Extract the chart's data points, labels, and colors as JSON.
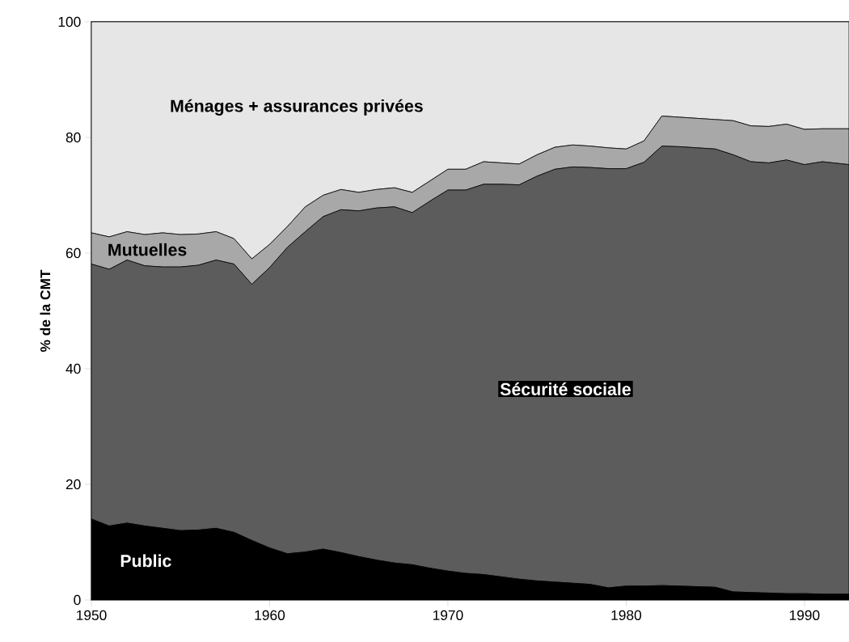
{
  "chart_data": {
    "type": "area",
    "stacked": true,
    "ylabel": "% de la CMT",
    "x": [
      1950,
      1951,
      1952,
      1953,
      1954,
      1955,
      1956,
      1957,
      1958,
      1959,
      1960,
      1961,
      1962,
      1963,
      1964,
      1965,
      1966,
      1967,
      1968,
      1969,
      1970,
      1971,
      1972,
      1973,
      1974,
      1975,
      1976,
      1977,
      1978,
      1979,
      1980,
      1981,
      1982,
      1983,
      1984,
      1985,
      1986,
      1987,
      1988,
      1989,
      1990,
      1991,
      1992.5
    ],
    "series": [
      {
        "name": "Public",
        "color": "#000000",
        "values": [
          14.0,
          12.8,
          13.3,
          12.8,
          12.4,
          12.0,
          12.1,
          12.4,
          11.7,
          10.3,
          9.0,
          8.0,
          8.3,
          8.8,
          8.2,
          7.5,
          6.9,
          6.4,
          6.1,
          5.5,
          5.0,
          4.6,
          4.4,
          4.0,
          3.6,
          3.3,
          3.1,
          2.9,
          2.7,
          2.1,
          2.4,
          2.4,
          2.5,
          2.4,
          2.3,
          2.2,
          1.4,
          1.3,
          1.2,
          1.1,
          1.1,
          1.0,
          1.0
        ]
      },
      {
        "name": "Sécurité sociale",
        "color": "#5c5c5c",
        "values": [
          44.1,
          44.4,
          45.5,
          45.0,
          45.2,
          45.6,
          45.8,
          46.4,
          46.4,
          44.3,
          48.5,
          53.0,
          55.4,
          57.5,
          59.3,
          59.8,
          60.9,
          61.6,
          60.9,
          63.5,
          65.9,
          66.3,
          67.5,
          67.9,
          68.2,
          70.0,
          71.4,
          72.0,
          72.1,
          72.5,
          72.2,
          73.3,
          76.0,
          76.0,
          75.9,
          75.8,
          75.6,
          74.5,
          74.4,
          75.0,
          74.2,
          74.8,
          74.3
        ]
      },
      {
        "name": "Mutuelles",
        "color": "#a8a8a8",
        "values": [
          5.4,
          5.6,
          4.9,
          5.4,
          5.9,
          5.6,
          5.4,
          4.9,
          4.4,
          4.4,
          4.0,
          3.6,
          4.3,
          3.7,
          3.5,
          3.2,
          3.2,
          3.3,
          3.5,
          3.5,
          3.6,
          3.6,
          3.9,
          3.7,
          3.6,
          3.7,
          3.8,
          3.8,
          3.7,
          3.6,
          3.4,
          3.7,
          5.2,
          5.1,
          5.1,
          5.1,
          5.9,
          6.2,
          6.3,
          6.2,
          6.1,
          5.7,
          6.2
        ]
      },
      {
        "name": "Ménages + assurances privées",
        "color": "#e6e6e6",
        "values": [
          36.5,
          37.2,
          36.3,
          36.8,
          36.5,
          36.8,
          36.7,
          36.3,
          37.5,
          41.0,
          38.5,
          35.4,
          32.0,
          30.0,
          29.0,
          29.5,
          29.0,
          28.7,
          29.5,
          27.5,
          25.5,
          25.5,
          24.2,
          24.4,
          24.6,
          23.0,
          21.7,
          21.3,
          21.5,
          21.8,
          22.0,
          20.6,
          16.3,
          16.5,
          16.7,
          16.9,
          17.1,
          18.0,
          18.1,
          17.7,
          18.6,
          18.5,
          18.5
        ]
      }
    ],
    "xlim": [
      1950,
      1992.5
    ],
    "xticks": [
      1950,
      1960,
      1970,
      1980,
      1990
    ],
    "ylim": [
      0,
      100
    ],
    "yticks": [
      0,
      20,
      40,
      60,
      80,
      100
    ],
    "grid": false
  }
}
